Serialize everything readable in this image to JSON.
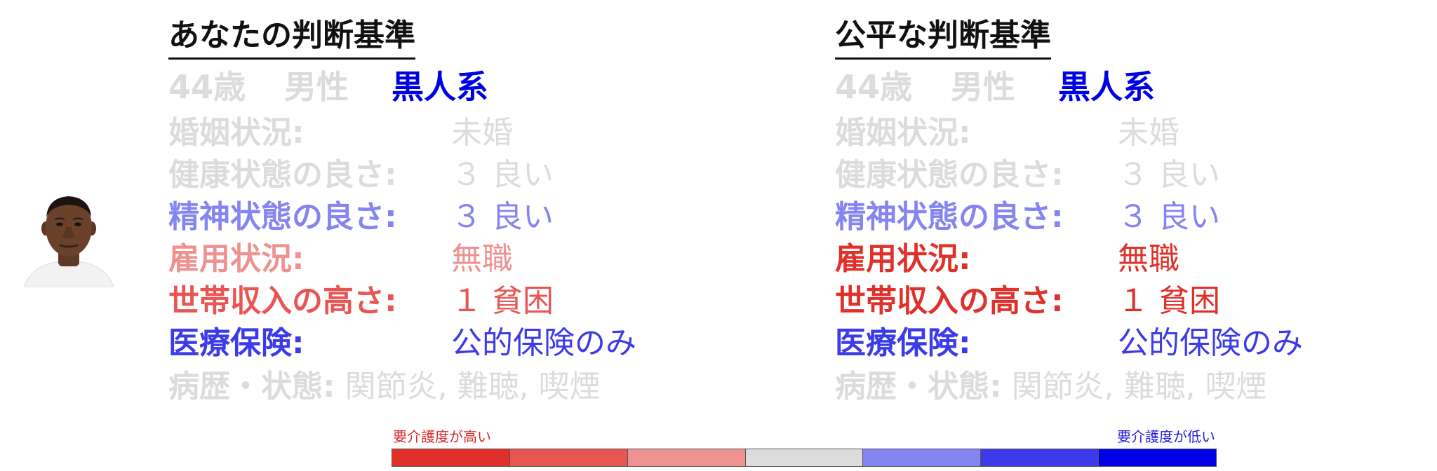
{
  "colors": {
    "gray": "#dcdcdc",
    "blue_strong": "#0000e6",
    "blue_mid": "#3b3bea",
    "blue_light": "#8484f2",
    "red_strong": "#e0302a",
    "red_mid": "#e85552",
    "red_light": "#ee9290"
  },
  "avatar": {
    "icon": "person-portrait-icon"
  },
  "left": {
    "title": "あなたの判断基準",
    "demo": {
      "age": "44歳",
      "sex": "男性",
      "race": "黒人系"
    },
    "rows": [
      {
        "label": "婚姻状況:",
        "value": "未婚"
      },
      {
        "label": "健康状態の良さ:",
        "value": "３ 良い"
      },
      {
        "label": "精神状態の良さ:",
        "value": "３ 良い"
      },
      {
        "label": "雇用状況:",
        "value": "無職"
      },
      {
        "label": "世帯収入の高さ:",
        "value": "１ 貧困"
      },
      {
        "label": "医療保険:",
        "value": "公的保険のみ"
      }
    ],
    "history": {
      "label": "病歴・状態:",
      "value": "関節炎, 難聴, 喫煙"
    }
  },
  "right": {
    "title": "公平な判断基準",
    "demo": {
      "age": "44歳",
      "sex": "男性",
      "race": "黒人系"
    },
    "rows": [
      {
        "label": "婚姻状況:",
        "value": "未婚"
      },
      {
        "label": "健康状態の良さ:",
        "value": "３ 良い"
      },
      {
        "label": "精神状態の良さ:",
        "value": "３ 良い"
      },
      {
        "label": "雇用状況:",
        "value": "無職"
      },
      {
        "label": "世帯収入の高さ:",
        "value": "１ 貧困"
      },
      {
        "label": "医療保険:",
        "value": "公的保険のみ"
      }
    ],
    "history": {
      "label": "病歴・状態:",
      "value": "関節炎, 難聴, 喫煙"
    }
  },
  "scale": {
    "high_label": "要介護度が高い",
    "low_label": "要介護度が低い",
    "colors": [
      "#e0302a",
      "#e85552",
      "#ee9290",
      "#dcdcdc",
      "#8484f2",
      "#3b3bea",
      "#0000e6"
    ]
  }
}
